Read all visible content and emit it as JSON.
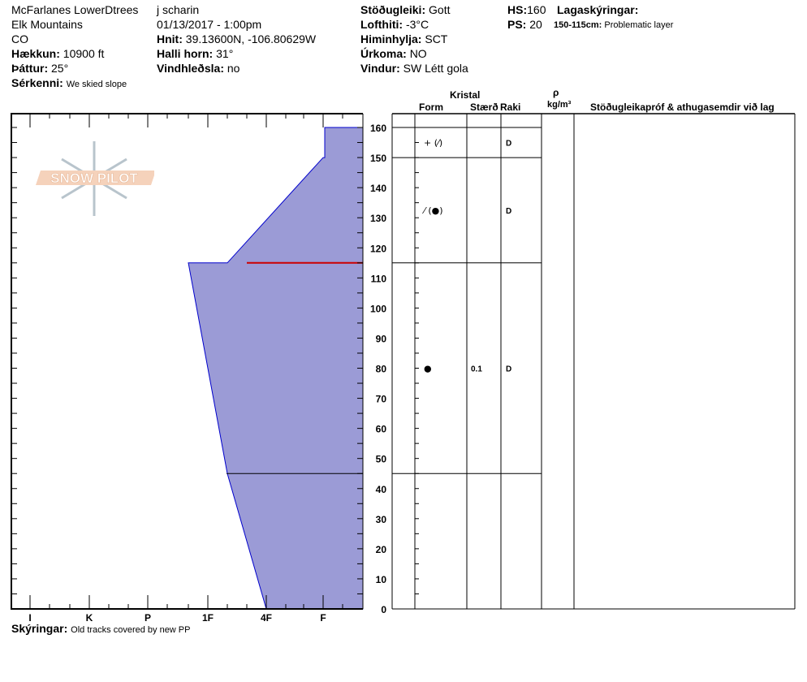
{
  "header": {
    "site": "McFarlanes LowerDtrees",
    "range": "Elk Mountains",
    "state": "CO",
    "elevation_label": "Hækkun:",
    "elevation": "10900 ft",
    "aspect_label": "Þáttur:",
    "aspect": "25°",
    "notes_label": "Sérkenni:",
    "notes": "We skied slope",
    "observer": "j scharin",
    "datetime": "01/13/2017 - 1:00pm",
    "coords_label": "Hnit:",
    "coords": "39.13600N, -106.80629W",
    "slope_label": "Halli horn:",
    "slope": "31°",
    "wind_loading_label": "Vindhleðsla:",
    "wind_loading": "no",
    "stability_label": "Stöðugleiki:",
    "stability": "Gott",
    "air_temp_label": "Lofthiti:",
    "air_temp": "-3°C",
    "sky_label": "Himinhylja:",
    "sky": "SCT",
    "precip_label": "Úrkoma:",
    "precip": "NO",
    "wind_label": "Vindur:",
    "wind": "SW Létt gola",
    "hs_label": "HS:",
    "hs": "160",
    "ps_label": "PS:",
    "ps": "20",
    "layer_notes_label": "Lagaskýringar:",
    "layer_note_range": "150-115cm:",
    "layer_note": "Problematic layer"
  },
  "table_header": {
    "crystal": "Kristal",
    "form": "Form",
    "size": "Stærð",
    "moisture": "Raki",
    "rho": "ρ",
    "density_unit": "kg/m³",
    "comments": "Stöðugleikapróf & athugasemdir við lag"
  },
  "chart_data": {
    "type": "area",
    "x_categories": [
      "I",
      "K",
      "P",
      "1F",
      "4F",
      "F"
    ],
    "y_ticks": [
      0,
      10,
      20,
      30,
      40,
      50,
      60,
      70,
      80,
      90,
      100,
      110,
      120,
      130,
      140,
      150,
      160
    ],
    "ylim": [
      0,
      160
    ],
    "hardness_profile": [
      {
        "depth": 160,
        "hardness": "F+"
      },
      {
        "depth": 150,
        "hardness": "F+"
      },
      {
        "depth": 150,
        "hardness": "F"
      },
      {
        "depth": 115,
        "hardness": "1F+"
      },
      {
        "depth": 115,
        "hardness": "1F-"
      },
      {
        "depth": 45,
        "hardness": "1F+"
      },
      {
        "depth": 0,
        "hardness": "4F"
      }
    ],
    "problem_layer_depth": 115,
    "colors": {
      "fill": "#9b9bd6",
      "outline": "#0000cc",
      "problem": "#cc0000"
    }
  },
  "layers": [
    {
      "top": 160,
      "bottom": 150,
      "form": "+ (⁄)",
      "size": "",
      "moisture": "D"
    },
    {
      "top": 150,
      "bottom": 115,
      "form": "⁄ (●)",
      "size": "",
      "moisture": "D"
    },
    {
      "top": 115,
      "bottom": 45,
      "form": "●",
      "size": "0.1",
      "moisture": "D"
    },
    {
      "top": 45,
      "bottom": 0,
      "form": "",
      "size": "",
      "moisture": ""
    }
  ],
  "footer": {
    "comments_label": "Skýringar:",
    "comments": "Old tracks covered by new PP"
  },
  "logo": "SNOW PILOT"
}
